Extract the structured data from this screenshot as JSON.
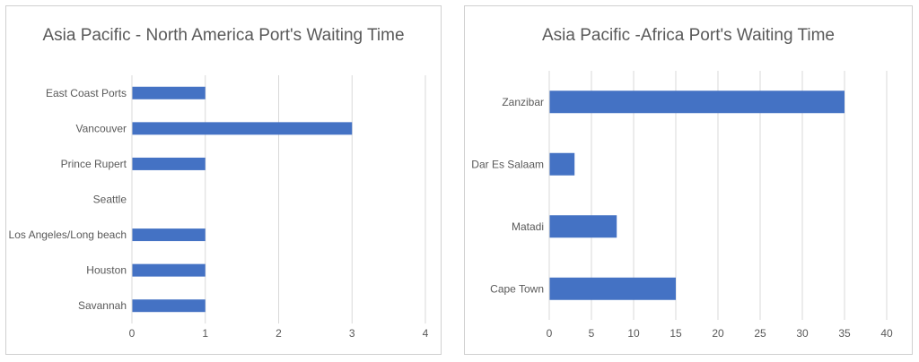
{
  "colors": {
    "bar": "#4472C4",
    "grid": "#d9d9d9",
    "text": "#595959",
    "border": "#d0d0d0"
  },
  "chart_data": [
    {
      "type": "bar",
      "orientation": "horizontal",
      "title": "Asia Pacific - North America Port's Waiting Time",
      "categories": [
        "East Coast Ports",
        "Vancouver",
        "Prince Rupert",
        "Seattle",
        "Los Angeles/Long beach",
        "Houston",
        "Savannah"
      ],
      "values": [
        1,
        3,
        1,
        0,
        1,
        1,
        1
      ],
      "xlim": [
        0,
        4
      ],
      "xticks": [
        "0",
        "1",
        "2",
        "3",
        "4"
      ],
      "grid": true,
      "legend": "none"
    },
    {
      "type": "bar",
      "orientation": "horizontal",
      "title": "Asia Pacific -Africa Port's Waiting Time",
      "categories": [
        "Zanzibar",
        "Dar Es Salaam",
        "Matadi",
        "Cape Town"
      ],
      "values": [
        35,
        3,
        8,
        15
      ],
      "xlim": [
        0,
        40
      ],
      "xticks": [
        "0",
        "5",
        "10",
        "15",
        "20",
        "25",
        "30",
        "35",
        "40"
      ],
      "grid": true,
      "legend": "none"
    }
  ]
}
